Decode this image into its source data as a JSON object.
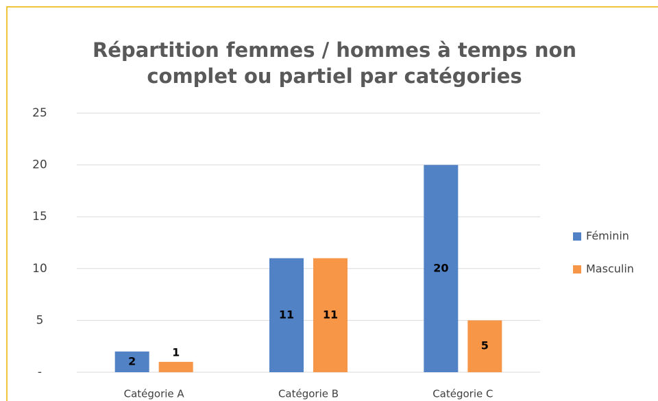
{
  "chart_data": {
    "type": "bar",
    "title": [
      "Répartition femmes / hommes à temps non",
      "complet ou partiel par catégories"
    ],
    "categories": [
      "Catégorie A",
      "Catégorie B",
      "Catégorie C"
    ],
    "series": [
      {
        "name": "Féminin",
        "color": "#5182c5",
        "values": [
          2,
          11,
          20
        ]
      },
      {
        "name": "Masculin",
        "color": "#f79646",
        "values": [
          1,
          11,
          5
        ]
      }
    ],
    "ylim": [
      0,
      25
    ],
    "yticks": [
      {
        "value": 0,
        "label": "-"
      },
      5,
      10,
      15,
      20,
      25
    ],
    "grid": true,
    "legend": "right"
  }
}
